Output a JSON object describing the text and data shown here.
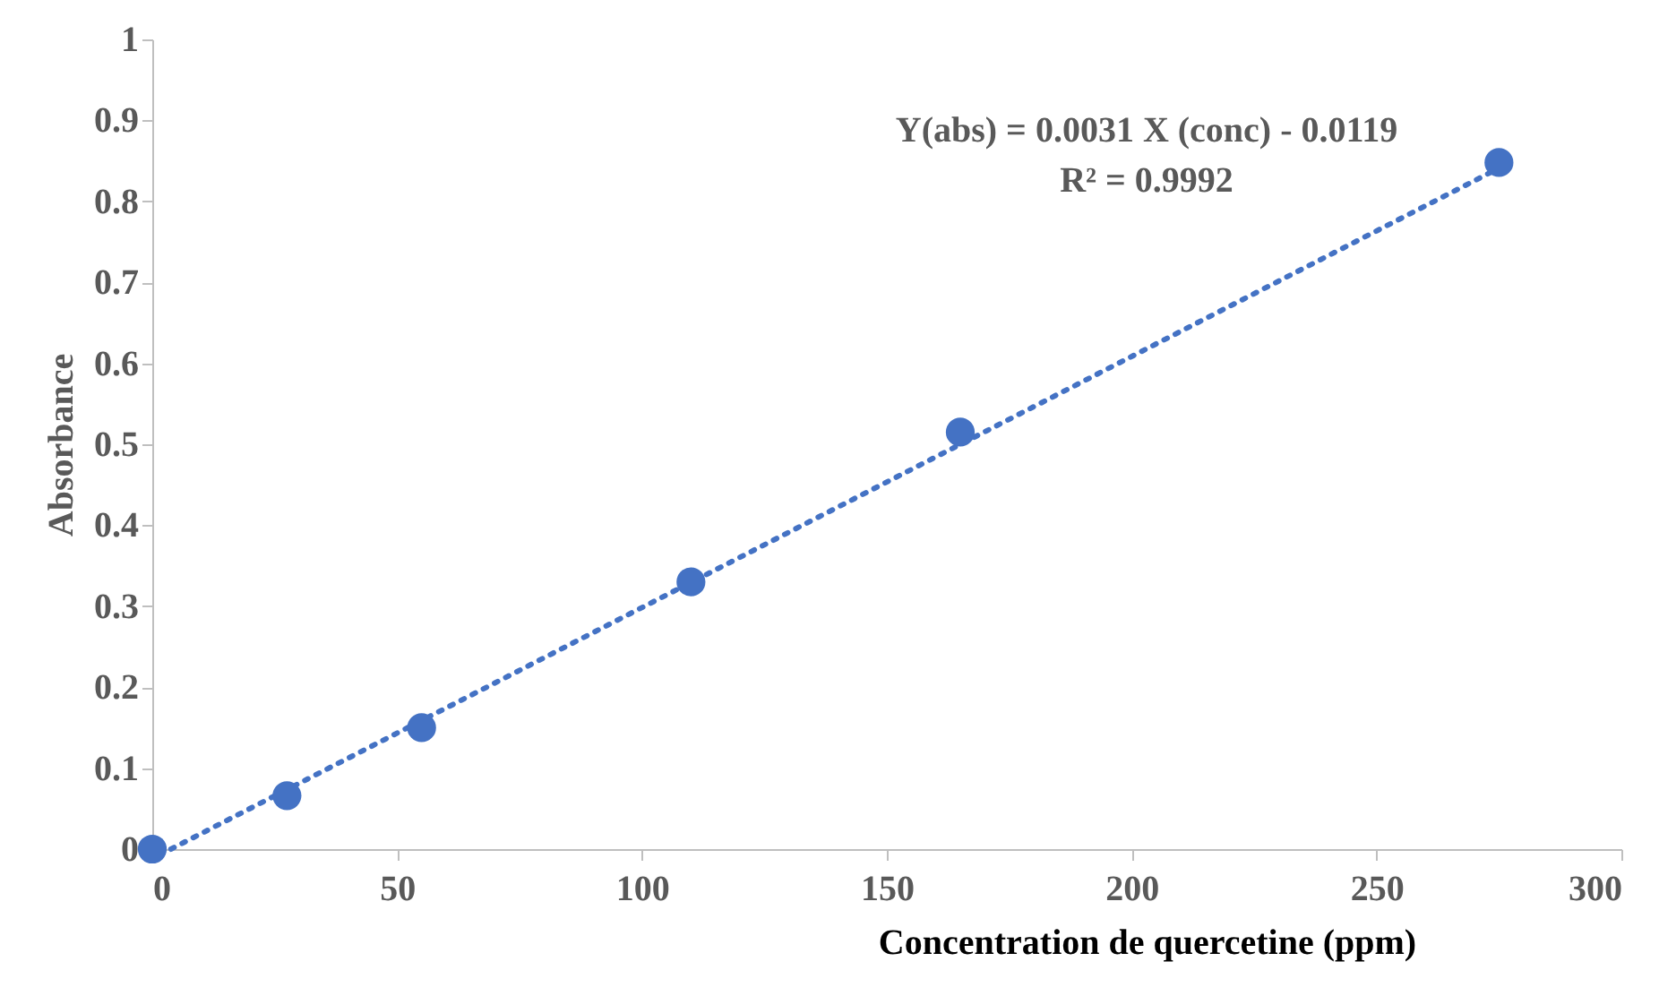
{
  "chart_data": {
    "type": "scatter",
    "xlabel": "Concentration de quercetine (ppm)",
    "ylabel": "Absorbance",
    "annotations": [
      "Y(abs) = 0.0031 X (conc) - 0.0119",
      "R² = 0.9992"
    ],
    "series": [
      {
        "color": "#4472c4",
        "x": [
          0,
          27.5,
          55,
          110,
          165,
          275
        ],
        "values": [
          0,
          0.066,
          0.15,
          0.33,
          0.515,
          0.848
        ],
        "marker": "circle"
      },
      {
        "type": "line",
        "color": "#4472c4",
        "x": [
          3.8,
          275
        ],
        "values": [
          0,
          0.841
        ],
        "line_style": "dotted"
      }
    ],
    "xlim": [
      0,
      300
    ],
    "xticks": [
      0,
      50,
      100,
      150,
      200,
      250,
      300
    ],
    "ylim": [
      0,
      1
    ],
    "yticks": [
      0,
      0.1,
      0.2,
      0.3,
      0.4,
      0.5,
      0.6,
      0.7,
      0.8,
      0.9,
      1
    ],
    "grid": false
  }
}
